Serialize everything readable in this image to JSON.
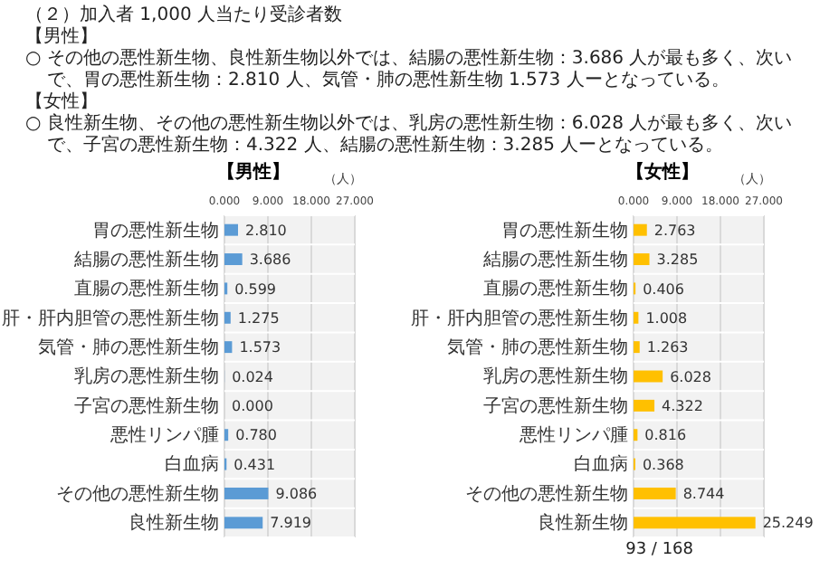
{
  "chart_data": [
    {
      "type": "bar",
      "orientation": "horizontal",
      "title": "【男性】",
      "xlabel": "（人）",
      "annotations": [
        "（２）加入者 1,000 人当たり受診者数",
        "【男性】",
        "○ その他の悪性新生物、良性新生物以外では、結腸の悪性新生物：3.686 人が最も多く、次いで、胃の悪性新生物：2.810 人、気管・肺の悪性新生物 1.573 人ーとなっている。",
        "【女性】",
        "○ 良性新生物、その他の悪性新生物以外では、乳房の悪性新生物：6.028 人が最も多く、次いで、子宮の悪性新生物：4.322 人、結腸の悪性新生物：3.285 人ーとなっている。"
      ],
      "categories": [
        "胃の悪性新生物",
        "結腸の悪性新生物",
        "直腸の悪性新生物",
        "肝・肝内胆管の悪性新生物",
        "気管・肺の悪性新生物",
        "乳房の悪性新生物",
        "子宮の悪性新生物",
        "悪性リンパ腫",
        "白血病",
        "その他の悪性新生物",
        "良性新生物"
      ],
      "values": [
        2.81,
        3.686,
        0.599,
        1.275,
        1.573,
        0.024,
        0,
        0.78,
        0.431,
        9.086,
        7.919
      ],
      "value_labels": [
        "2.810",
        "3.686",
        "0.599",
        "1.275",
        "1.573",
        "0.024",
        "0.000",
        "0.780",
        "0.431",
        "9.086",
        "7.919"
      ],
      "color": "#5b9bd5",
      "xlim": [
        0,
        27
      ],
      "xticks": [
        {
          "value": 0,
          "label": "0.000"
        },
        {
          "value": 9,
          "label": "9.000"
        },
        {
          "value": 18,
          "label": "18.000"
        },
        {
          "value": 27,
          "label": "27.000"
        }
      ],
      "grid": true
    },
    {
      "type": "bar",
      "orientation": "horizontal",
      "title": "【女性】",
      "xlabel": "（人）",
      "annotations": [
        "93 / 168"
      ],
      "categories": [
        "胃の悪性新生物",
        "結腸の悪性新生物",
        "直腸の悪性新生物",
        "肝・肝内胆管の悪性新生物",
        "気管・肺の悪性新生物",
        "乳房の悪性新生物",
        "子宮の悪性新生物",
        "悪性リンパ腫",
        "白血病",
        "その他の悪性新生物",
        "良性新生物"
      ],
      "values": [
        2.763,
        3.285,
        0.406,
        1.008,
        1.263,
        6.028,
        4.322,
        0.816,
        0.368,
        8.744,
        25.249
      ],
      "value_labels": [
        "2.763",
        "3.285",
        "0.406",
        "1.008",
        "1.263",
        "6.028",
        "4.322",
        "0.816",
        "0.368",
        "8.744",
        "25.249"
      ],
      "color": "#ffc000",
      "xlim": [
        0,
        27
      ],
      "xticks": [
        {
          "value": 0,
          "label": "0.000"
        },
        {
          "value": 9,
          "label": "9.000"
        },
        {
          "value": 18,
          "label": "18.000"
        },
        {
          "value": 27,
          "label": "27.000"
        }
      ],
      "grid": true
    }
  ]
}
